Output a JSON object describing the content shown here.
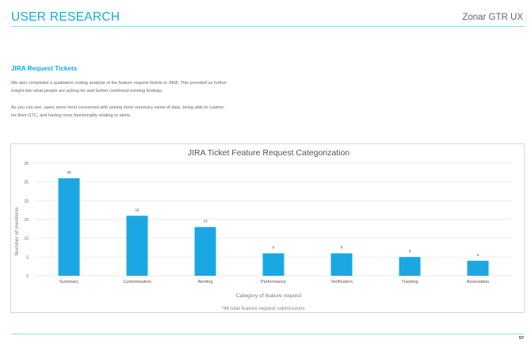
{
  "header": {
    "title": "USER RESEARCH",
    "brand": "Zonar GTR UX"
  },
  "section": {
    "title": "JIRA Request Tickets",
    "paragraph1_line1": "We also completed a qualitative coding analysis of the feature request tickets in JIRA. This provided us further",
    "paragraph1_line2": "insight into what people are asking for and further confirmed existing findings.",
    "paragraph2_line1": "As you can see, users more most concerned with seeing more summary views of data, being able to custom-",
    "paragraph2_line2": "ize their GTC, and having more functionality relating to alerts."
  },
  "chart_data": {
    "type": "bar",
    "title": "JIRA Ticket Feature Request Categorization",
    "xlabel": "Category of feature request",
    "ylabel": "Number of mentions",
    "note": "*46 total feature request submissions",
    "categories": [
      "Summary",
      "Customization",
      "Alerting",
      "Performance",
      "Verification",
      "Tracking",
      "Association"
    ],
    "values": [
      26,
      16,
      13,
      6,
      6,
      5,
      4
    ],
    "ylim": [
      0,
      30
    ],
    "yticks": [
      0,
      5,
      10,
      15,
      20,
      25,
      30
    ],
    "grid": true,
    "bar_color": "#1ba8e2"
  },
  "footer": {
    "page_number": "57"
  },
  "colors": {
    "accent": "#1ba8d8",
    "rule": "#9fd6ea"
  }
}
